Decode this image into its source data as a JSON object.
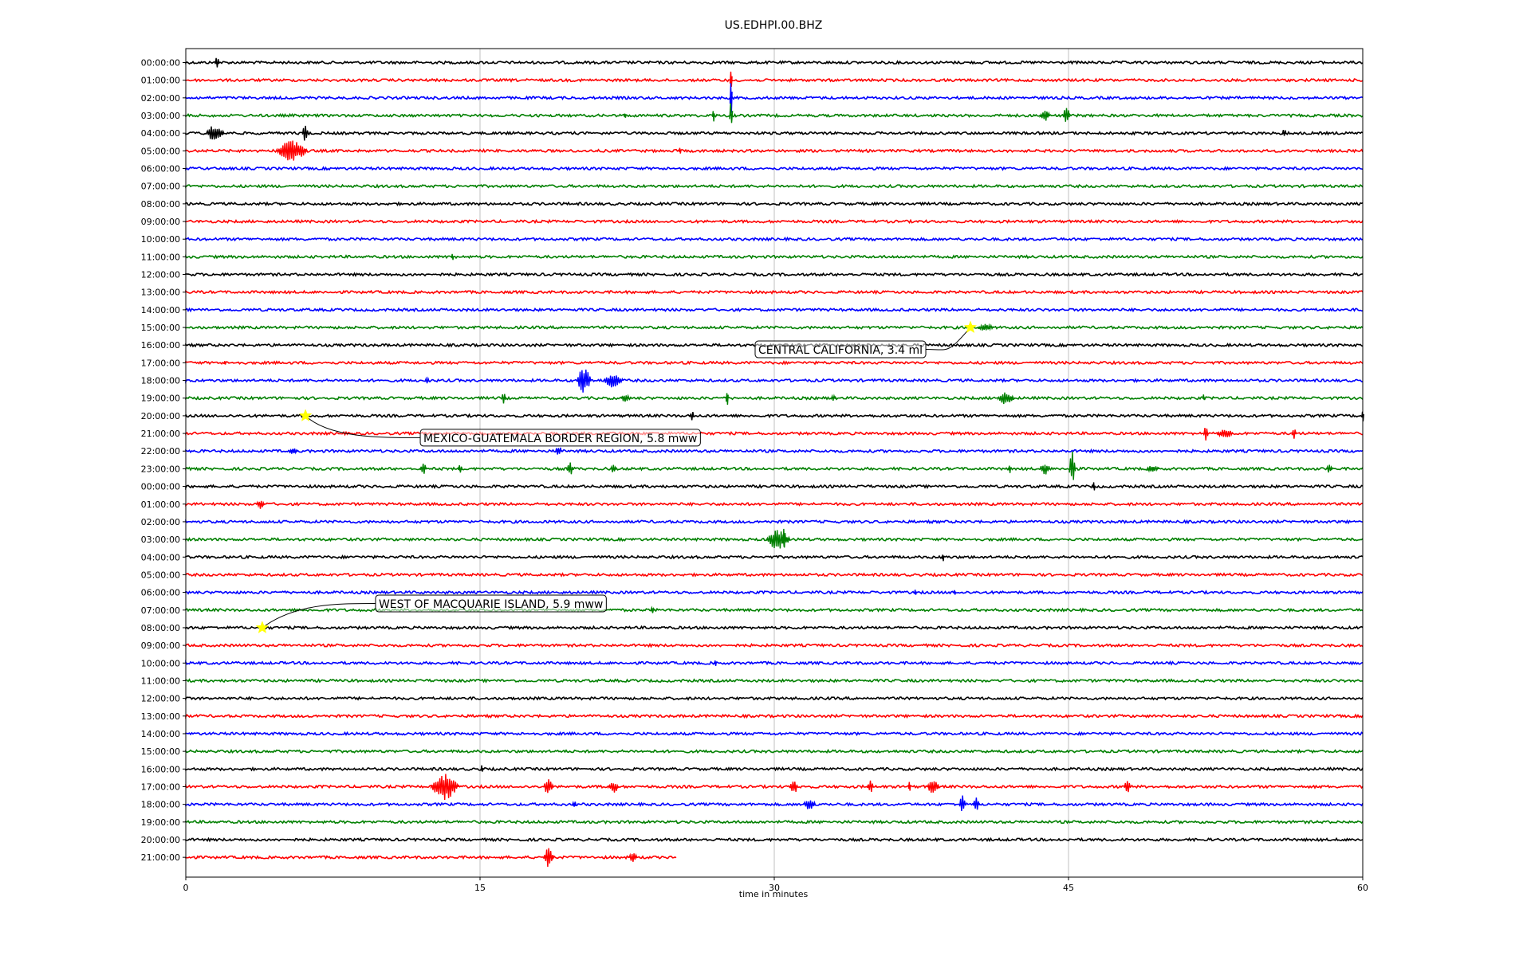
{
  "chart_data": {
    "type": "line",
    "title": "US.EDHPI.00.BHZ",
    "xlabel": "time in minutes",
    "ylabel": "",
    "xlim": [
      0,
      60
    ],
    "x_ticks": [
      "0",
      "15",
      "30",
      "45",
      "60"
    ],
    "x_tick_values": [
      0,
      15,
      30,
      45,
      60
    ],
    "grid": "vertical at major ticks",
    "trace_colors": [
      "#000000",
      "#ff0000",
      "#0000ff",
      "#008000"
    ],
    "y_tick_labels": [
      "00:00:00",
      "01:00:00",
      "02:00:00",
      "03:00:00",
      "04:00:00",
      "05:00:00",
      "06:00:00",
      "07:00:00",
      "08:00:00",
      "09:00:00",
      "10:00:00",
      "11:00:00",
      "12:00:00",
      "13:00:00",
      "14:00:00",
      "15:00:00",
      "16:00:00",
      "17:00:00",
      "18:00:00",
      "19:00:00",
      "20:00:00",
      "21:00:00",
      "22:00:00",
      "23:00:00",
      "00:00:00",
      "01:00:00",
      "02:00:00",
      "03:00:00",
      "04:00:00",
      "05:00:00",
      "06:00:00",
      "07:00:00",
      "08:00:00",
      "09:00:00",
      "10:00:00",
      "11:00:00",
      "12:00:00",
      "13:00:00",
      "14:00:00",
      "15:00:00",
      "16:00:00",
      "17:00:00",
      "18:00:00",
      "19:00:00",
      "20:00:00",
      "21:00:00"
    ],
    "last_trace_end_minute": 25,
    "events": [
      {
        "label": "CENTRAL CALIFORNIA, 3.4 ml",
        "row": 15,
        "minute": 40.0
      },
      {
        "label": "MEXICO-GUATEMALA BORDER REGION, 5.8 mww",
        "row": 20,
        "minute": 6.1
      },
      {
        "label": "WEST OF MACQUARIE ISLAND, 5.9 mww",
        "row": 32,
        "minute": 3.9
      }
    ],
    "bursts": [
      {
        "row": 0,
        "minute": 1.6,
        "width": 0.2,
        "amp": 7
      },
      {
        "row": 1,
        "minute": 27.8,
        "width": 0.1,
        "amp": 14
      },
      {
        "row": 2,
        "minute": 27.8,
        "width": 0.1,
        "amp": 22
      },
      {
        "row": 3,
        "minute": 27.8,
        "width": 0.15,
        "amp": 22
      },
      {
        "row": 3,
        "minute": 26.9,
        "width": 0.1,
        "amp": 10
      },
      {
        "row": 3,
        "minute": 43.8,
        "width": 0.5,
        "amp": 7
      },
      {
        "row": 3,
        "minute": 44.9,
        "width": 0.3,
        "amp": 12
      },
      {
        "row": 3,
        "minute": 22.4,
        "width": 0.1,
        "amp": 5
      },
      {
        "row": 4,
        "minute": 1.5,
        "width": 0.9,
        "amp": 11
      },
      {
        "row": 4,
        "minute": 6.1,
        "width": 0.3,
        "amp": 11
      },
      {
        "row": 4,
        "minute": 56.0,
        "width": 0.2,
        "amp": 6
      },
      {
        "row": 5,
        "minute": 5.4,
        "width": 1.6,
        "amp": 14
      },
      {
        "row": 5,
        "minute": 25.2,
        "width": 0.1,
        "amp": 6
      },
      {
        "row": 11,
        "minute": 13.6,
        "width": 0.1,
        "amp": 5
      },
      {
        "row": 15,
        "minute": 40.8,
        "width": 0.8,
        "amp": 5
      },
      {
        "row": 17,
        "minute": 2.0,
        "width": 0.1,
        "amp": 5
      },
      {
        "row": 18,
        "minute": 20.3,
        "width": 0.7,
        "amp": 17
      },
      {
        "row": 18,
        "minute": 21.8,
        "width": 1.0,
        "amp": 9
      },
      {
        "row": 18,
        "minute": 12.3,
        "width": 0.2,
        "amp": 4
      },
      {
        "row": 19,
        "minute": 16.2,
        "width": 0.2,
        "amp": 8
      },
      {
        "row": 19,
        "minute": 27.6,
        "width": 0.1,
        "amp": 12
      },
      {
        "row": 19,
        "minute": 22.4,
        "width": 0.4,
        "amp": 6
      },
      {
        "row": 19,
        "minute": 41.8,
        "width": 0.8,
        "amp": 8
      },
      {
        "row": 19,
        "minute": 33.0,
        "width": 0.2,
        "amp": 5
      },
      {
        "row": 19,
        "minute": 51.9,
        "width": 0.1,
        "amp": 5
      },
      {
        "row": 20,
        "minute": 25.8,
        "width": 0.2,
        "amp": 6
      },
      {
        "row": 20,
        "minute": 60.0,
        "width": 0.1,
        "amp": 8
      },
      {
        "row": 21,
        "minute": 52.0,
        "width": 0.2,
        "amp": 12
      },
      {
        "row": 21,
        "minute": 53.0,
        "width": 0.8,
        "amp": 6
      },
      {
        "row": 21,
        "minute": 56.5,
        "width": 0.2,
        "amp": 7
      },
      {
        "row": 22,
        "minute": 5.5,
        "width": 0.4,
        "amp": 5
      },
      {
        "row": 22,
        "minute": 19.0,
        "width": 0.3,
        "amp": 7
      },
      {
        "row": 23,
        "minute": 12.1,
        "width": 0.3,
        "amp": 8
      },
      {
        "row": 23,
        "minute": 14.0,
        "width": 0.2,
        "amp": 6
      },
      {
        "row": 23,
        "minute": 19.6,
        "width": 0.3,
        "amp": 8
      },
      {
        "row": 23,
        "minute": 21.8,
        "width": 0.3,
        "amp": 6
      },
      {
        "row": 23,
        "minute": 42.0,
        "width": 0.1,
        "amp": 7
      },
      {
        "row": 23,
        "minute": 43.8,
        "width": 0.5,
        "amp": 9
      },
      {
        "row": 23,
        "minute": 45.2,
        "width": 0.3,
        "amp": 22
      },
      {
        "row": 23,
        "minute": 49.3,
        "width": 0.6,
        "amp": 5
      },
      {
        "row": 23,
        "minute": 58.3,
        "width": 0.3,
        "amp": 6
      },
      {
        "row": 24,
        "minute": 46.3,
        "width": 0.1,
        "amp": 6
      },
      {
        "row": 25,
        "minute": 3.8,
        "width": 0.4,
        "amp": 6
      },
      {
        "row": 27,
        "minute": 30.2,
        "width": 1.2,
        "amp": 13
      },
      {
        "row": 27,
        "minute": 30.5,
        "width": 0.1,
        "amp": 20
      },
      {
        "row": 28,
        "minute": 38.6,
        "width": 0.1,
        "amp": 7
      },
      {
        "row": 30,
        "minute": 37.2,
        "width": 0.1,
        "amp": 4
      },
      {
        "row": 30,
        "minute": 39.2,
        "width": 0.1,
        "amp": 4
      },
      {
        "row": 31,
        "minute": 23.8,
        "width": 0.2,
        "amp": 4
      },
      {
        "row": 34,
        "minute": 27.0,
        "width": 0.1,
        "amp": 7
      },
      {
        "row": 40,
        "minute": 15.1,
        "width": 0.1,
        "amp": 7
      },
      {
        "row": 41,
        "minute": 13.2,
        "width": 1.4,
        "amp": 17
      },
      {
        "row": 41,
        "minute": 18.5,
        "width": 0.5,
        "amp": 10
      },
      {
        "row": 41,
        "minute": 21.8,
        "width": 0.5,
        "amp": 8
      },
      {
        "row": 41,
        "minute": 31.0,
        "width": 0.4,
        "amp": 10
      },
      {
        "row": 41,
        "minute": 34.9,
        "width": 0.3,
        "amp": 9
      },
      {
        "row": 41,
        "minute": 36.9,
        "width": 0.1,
        "amp": 9
      },
      {
        "row": 41,
        "minute": 38.1,
        "width": 0.6,
        "amp": 9
      },
      {
        "row": 41,
        "minute": 48.0,
        "width": 0.3,
        "amp": 8
      },
      {
        "row": 42,
        "minute": 19.8,
        "width": 0.2,
        "amp": 5
      },
      {
        "row": 42,
        "minute": 31.8,
        "width": 0.6,
        "amp": 8
      },
      {
        "row": 42,
        "minute": 39.6,
        "width": 0.3,
        "amp": 12
      },
      {
        "row": 42,
        "minute": 40.3,
        "width": 0.3,
        "amp": 10
      },
      {
        "row": 45,
        "minute": 18.5,
        "width": 0.5,
        "amp": 13
      },
      {
        "row": 45,
        "minute": 22.8,
        "width": 0.4,
        "amp": 6
      }
    ]
  }
}
